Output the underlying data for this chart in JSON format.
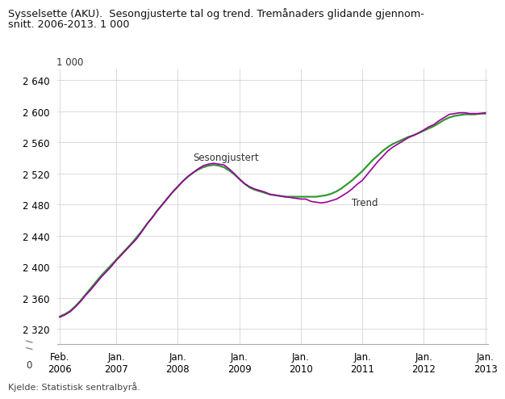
{
  "title_line1": "Sysselsette (AKU).  Sesongjusterte tal og trend. Tremånaders glidande gjennom-",
  "title_line2": "snitt. 2006-2013. 1 000",
  "source": "Kjelde: Statistisk sentralbyrå.",
  "yticks": [
    2320,
    2360,
    2400,
    2440,
    2480,
    2520,
    2560,
    2600,
    2640
  ],
  "ytick_labels": [
    "2 320",
    "2 360",
    "2 400",
    "2 440",
    "2 480",
    "2 520",
    "2 560",
    "2 600",
    "2 640"
  ],
  "ylabel_top": "1 000",
  "ymin": 2300,
  "ymax": 2655,
  "color_sesongjustert": "#990099",
  "color_trend": "#339933",
  "label_sesongjustert": "Sesongjustert",
  "label_trend": "Trend",
  "background_color": "#ffffff",
  "grid_color": "#cccccc",
  "xtick_positions": [
    0,
    11,
    23,
    35,
    47,
    59,
    71,
    83
  ],
  "xtick_labels": [
    "Feb.\n2006",
    "Jan.\n2007",
    "Jan.\n2008",
    "Jan.\n2009",
    "Jan.\n2010",
    "Jan.\n2011",
    "Jan.\n2012",
    "Jan.\n2013"
  ],
  "sesongjustert": [
    2335,
    2338,
    2342,
    2348,
    2355,
    2363,
    2370,
    2378,
    2386,
    2393,
    2400,
    2408,
    2415,
    2422,
    2429,
    2436,
    2445,
    2455,
    2463,
    2472,
    2480,
    2488,
    2496,
    2503,
    2510,
    2516,
    2521,
    2526,
    2530,
    2532,
    2533,
    2532,
    2531,
    2526,
    2520,
    2513,
    2507,
    2503,
    2500,
    2498,
    2496,
    2493,
    2492,
    2491,
    2490,
    2489,
    2488,
    2487,
    2487,
    2484,
    2483,
    2482,
    2483,
    2485,
    2487,
    2491,
    2495,
    2500,
    2506,
    2511,
    2519,
    2527,
    2535,
    2542,
    2549,
    2554,
    2558,
    2562,
    2566,
    2569,
    2572,
    2576,
    2580,
    2583,
    2588,
    2592,
    2596,
    2597,
    2598,
    2598,
    2597,
    2597,
    2597,
    2598
  ],
  "trend": [
    2336,
    2339,
    2343,
    2349,
    2356,
    2364,
    2372,
    2380,
    2388,
    2395,
    2402,
    2409,
    2416,
    2423,
    2430,
    2438,
    2446,
    2455,
    2463,
    2472,
    2480,
    2488,
    2496,
    2503,
    2510,
    2516,
    2521,
    2525,
    2528,
    2530,
    2531,
    2530,
    2528,
    2524,
    2519,
    2513,
    2507,
    2502,
    2499,
    2497,
    2495,
    2493,
    2492,
    2491,
    2490,
    2490,
    2490,
    2490,
    2490,
    2490,
    2490,
    2491,
    2492,
    2494,
    2497,
    2501,
    2506,
    2511,
    2517,
    2523,
    2530,
    2537,
    2543,
    2549,
    2554,
    2558,
    2561,
    2564,
    2567,
    2569,
    2572,
    2575,
    2578,
    2581,
    2585,
    2589,
    2592,
    2594,
    2595,
    2596,
    2596,
    2596,
    2597,
    2597
  ]
}
